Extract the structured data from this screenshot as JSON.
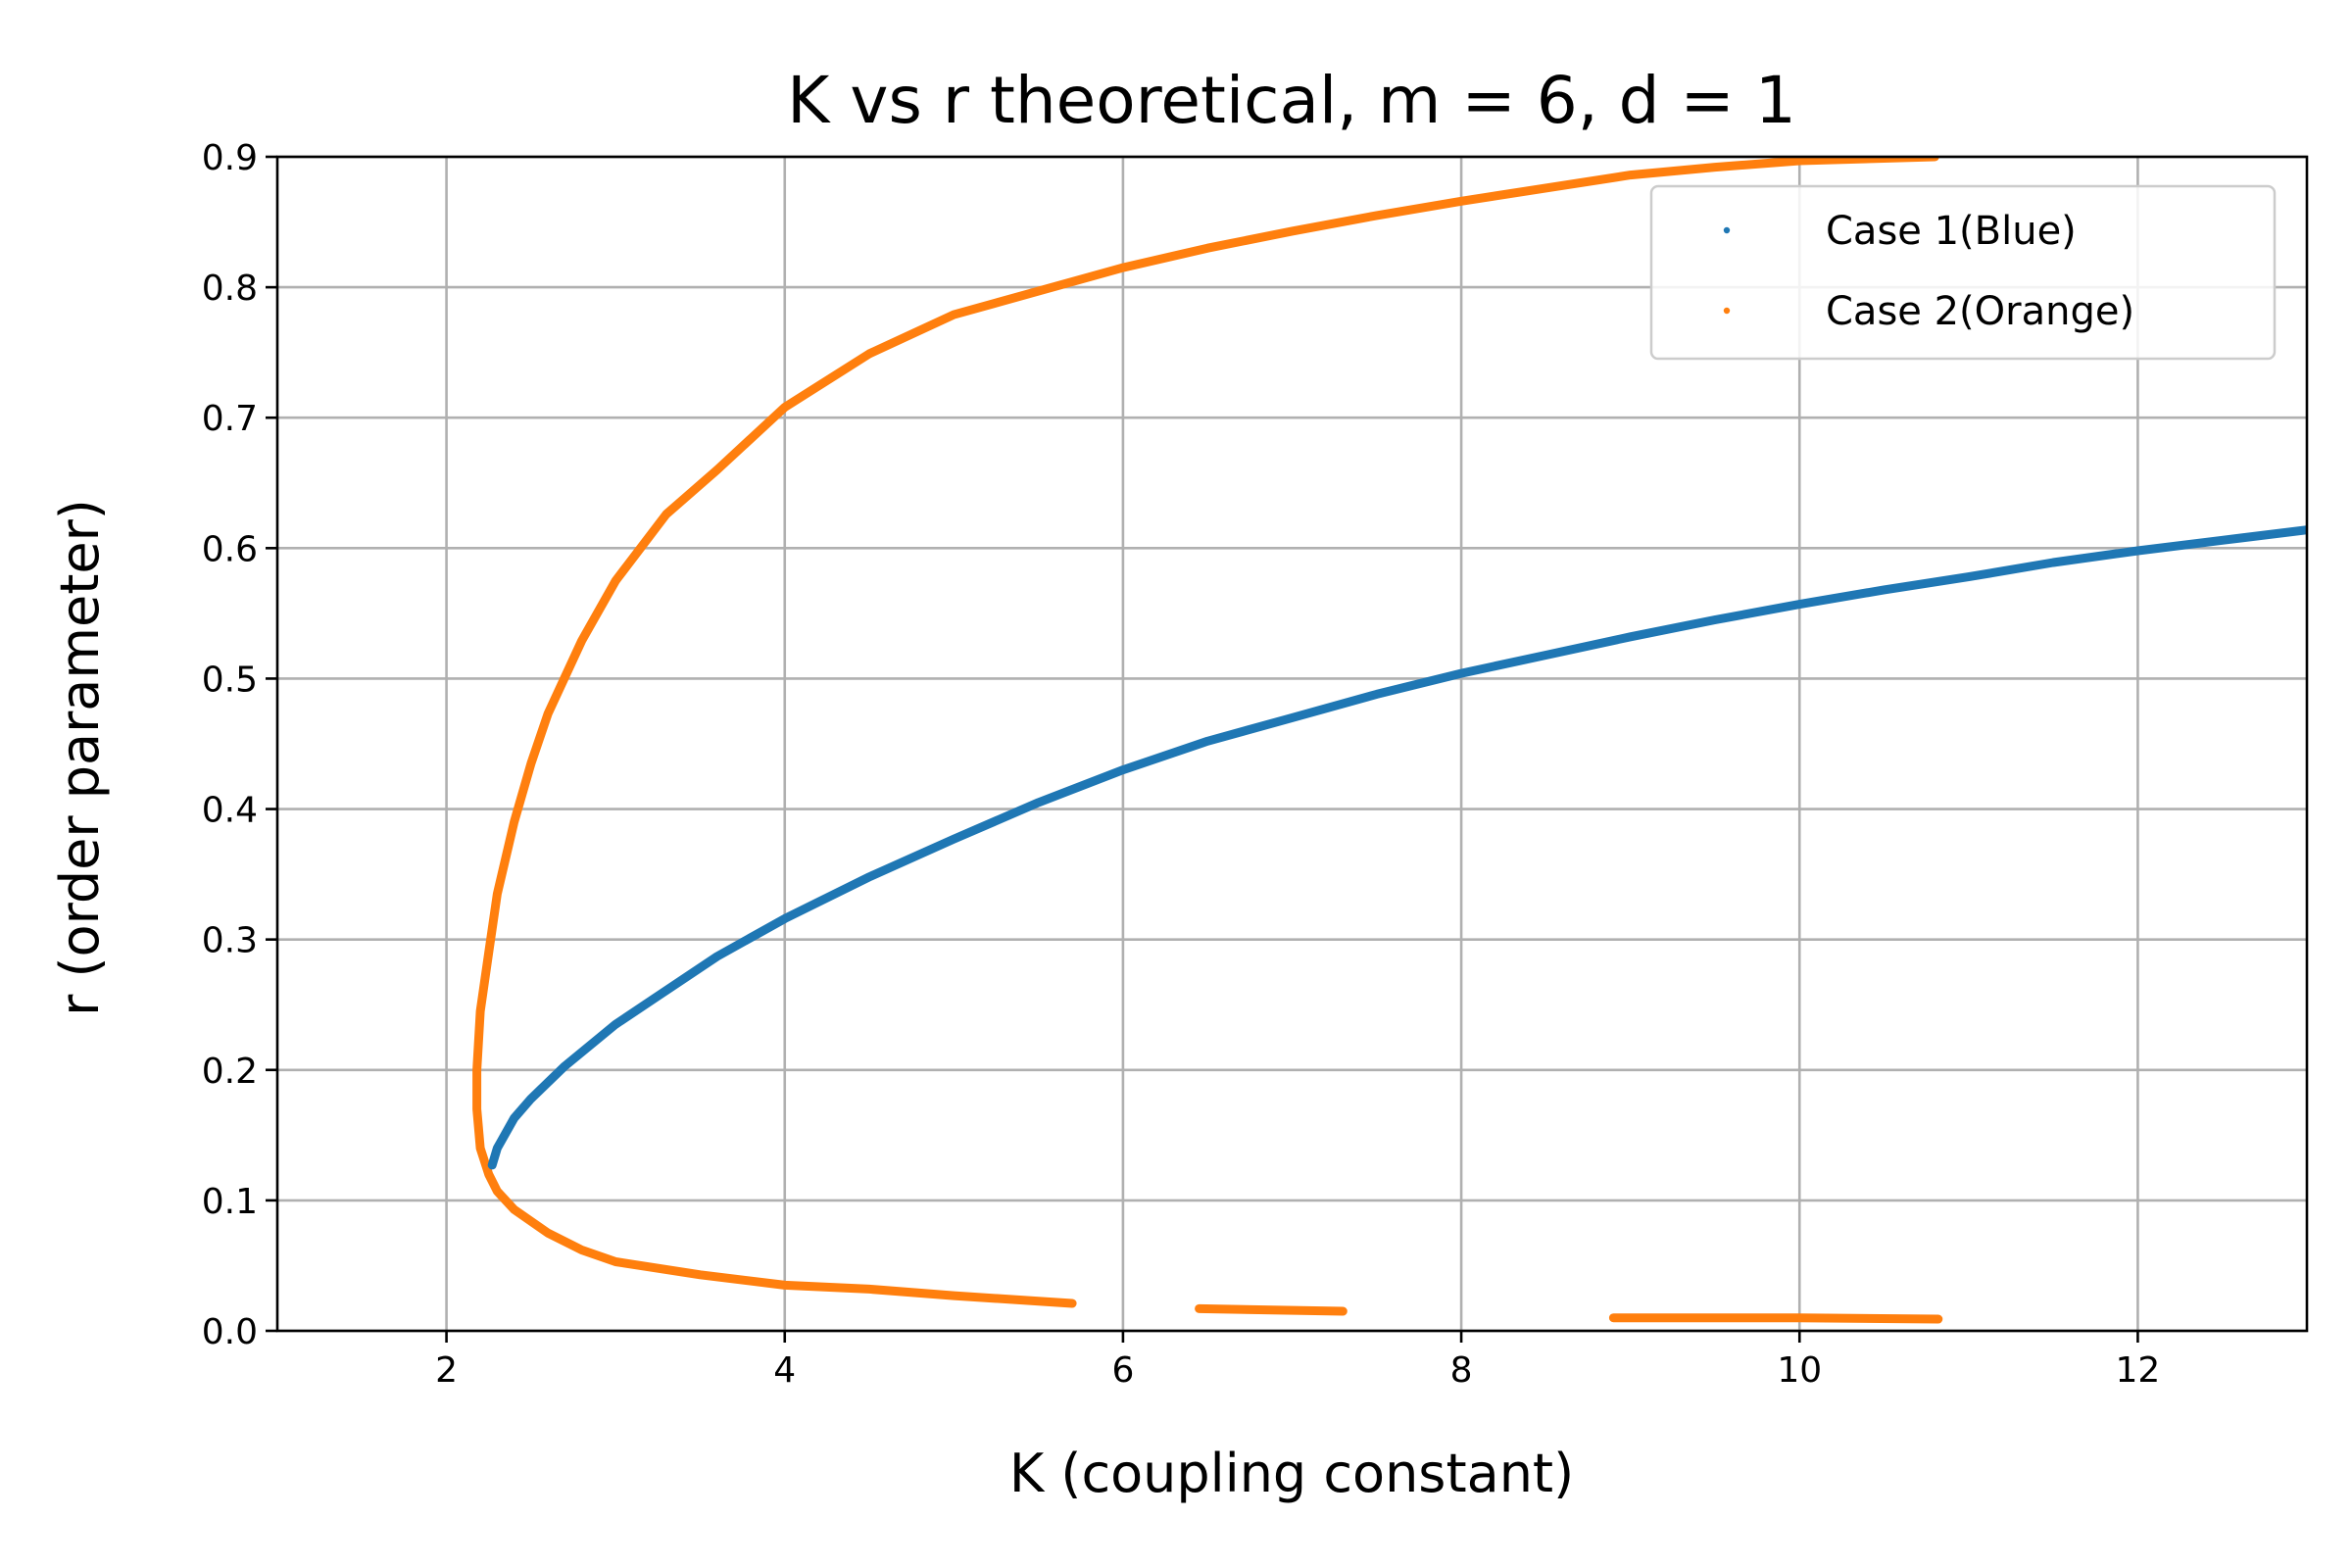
{
  "chart_data": {
    "type": "scatter",
    "title": "K vs r theoretical, m = 6, d = 1",
    "xlabel": "K (coupling constant)",
    "ylabel": "r (order parameter)",
    "xlim": [
      1,
      13
    ],
    "ylim": [
      0,
      0.9
    ],
    "xticks": [
      2,
      4,
      6,
      8,
      10,
      12
    ],
    "yticks": [
      0.0,
      0.1,
      0.2,
      0.3,
      0.4,
      0.5,
      0.6,
      0.7,
      0.8,
      0.9
    ],
    "grid": true,
    "legend_position": "top-right",
    "series": [
      {
        "name": "Case 1(Blue)",
        "color": "#1f77b4",
        "marker": "point",
        "points": [
          [
            2.27,
            0.127
          ],
          [
            2.3,
            0.14
          ],
          [
            2.4,
            0.163
          ],
          [
            2.5,
            0.178
          ],
          [
            2.7,
            0.203
          ],
          [
            3.0,
            0.235
          ],
          [
            3.3,
            0.261
          ],
          [
            3.6,
            0.287
          ],
          [
            4.0,
            0.316
          ],
          [
            4.5,
            0.348
          ],
          [
            5.0,
            0.377
          ],
          [
            5.5,
            0.405
          ],
          [
            6.0,
            0.43
          ],
          [
            6.5,
            0.452
          ],
          [
            7.0,
            0.47
          ],
          [
            7.5,
            0.488
          ],
          [
            8.0,
            0.504
          ],
          [
            8.5,
            0.518
          ],
          [
            9.0,
            0.532
          ],
          [
            9.5,
            0.545
          ],
          [
            10.0,
            0.557
          ],
          [
            10.5,
            0.568
          ],
          [
            11.0,
            0.578
          ],
          [
            11.5,
            0.589
          ],
          [
            12.0,
            0.598
          ],
          [
            12.5,
            0.606
          ],
          [
            13.0,
            0.614
          ]
        ]
      },
      {
        "name": "Case 2(Orange)",
        "color": "#ff7f0e",
        "marker": "point",
        "segments": [
          [
            [
              10.8,
              0.9
            ],
            [
              10.0,
              0.897
            ],
            [
              9.5,
              0.892
            ],
            [
              9.0,
              0.886
            ],
            [
              8.5,
              0.876
            ],
            [
              8.0,
              0.866
            ],
            [
              7.5,
              0.855
            ],
            [
              7.0,
              0.843
            ],
            [
              6.5,
              0.83
            ],
            [
              6.0,
              0.815
            ],
            [
              5.5,
              0.797
            ],
            [
              5.0,
              0.779
            ],
            [
              4.5,
              0.749
            ],
            [
              4.0,
              0.708
            ],
            [
              3.6,
              0.66
            ],
            [
              3.3,
              0.626
            ],
            [
              3.0,
              0.575
            ],
            [
              2.8,
              0.529
            ],
            [
              2.6,
              0.473
            ],
            [
              2.5,
              0.435
            ],
            [
              2.4,
              0.39
            ],
            [
              2.3,
              0.335
            ],
            [
              2.25,
              0.29
            ],
            [
              2.2,
              0.245
            ],
            [
              2.18,
              0.2
            ],
            [
              2.18,
              0.17
            ],
            [
              2.2,
              0.14
            ],
            [
              2.25,
              0.12
            ],
            [
              2.3,
              0.107
            ],
            [
              2.4,
              0.093
            ],
            [
              2.6,
              0.075
            ],
            [
              2.8,
              0.062
            ],
            [
              3.0,
              0.053
            ],
            [
              3.5,
              0.043
            ],
            [
              4.0,
              0.035
            ],
            [
              4.5,
              0.032
            ],
            [
              5.0,
              0.027
            ],
            [
              5.7,
              0.021
            ]
          ],
          [
            [
              6.45,
              0.017
            ],
            [
              7.3,
              0.015
            ]
          ],
          [
            [
              8.9,
              0.01
            ],
            [
              10.0,
              0.01
            ],
            [
              10.82,
              0.009
            ]
          ]
        ]
      }
    ]
  }
}
